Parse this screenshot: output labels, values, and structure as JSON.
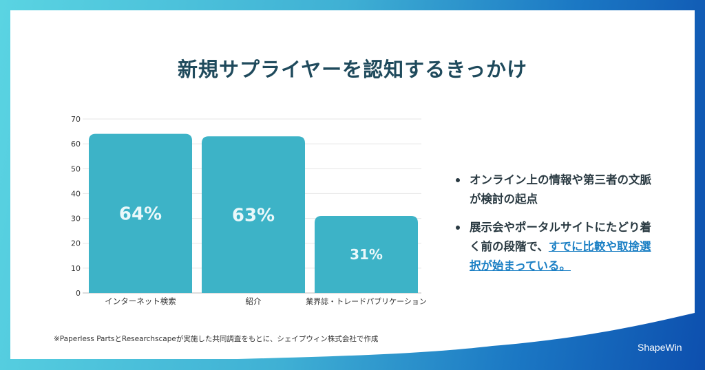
{
  "title": "新規サプライヤーを認知するきっかけ",
  "chart_data": {
    "type": "bar",
    "categories": [
      "インターネット検索",
      "紹介",
      "業界誌・トレードパブリケーション"
    ],
    "values": [
      64,
      63,
      31
    ],
    "data_labels": [
      "64%",
      "63%",
      "31%"
    ],
    "ylim": [
      0,
      70
    ],
    "yticks": [
      0,
      10,
      20,
      30,
      40,
      50,
      60,
      70
    ],
    "grid": true,
    "bar_color": "#3db3c7"
  },
  "bullets": [
    {
      "text": "オンライン上の情報や第三者の文脈が検討の起点"
    },
    {
      "text": "展示会やポータルサイトにたどり着く前の段階で、",
      "link": "すでに比較や取捨選択が始まっている。"
    }
  ],
  "footnote": "※Paperless PartsとResearchscapeが実施した共同調査をもとに、シェイプウィン株式会社で作成",
  "logo": "ShapeWin"
}
